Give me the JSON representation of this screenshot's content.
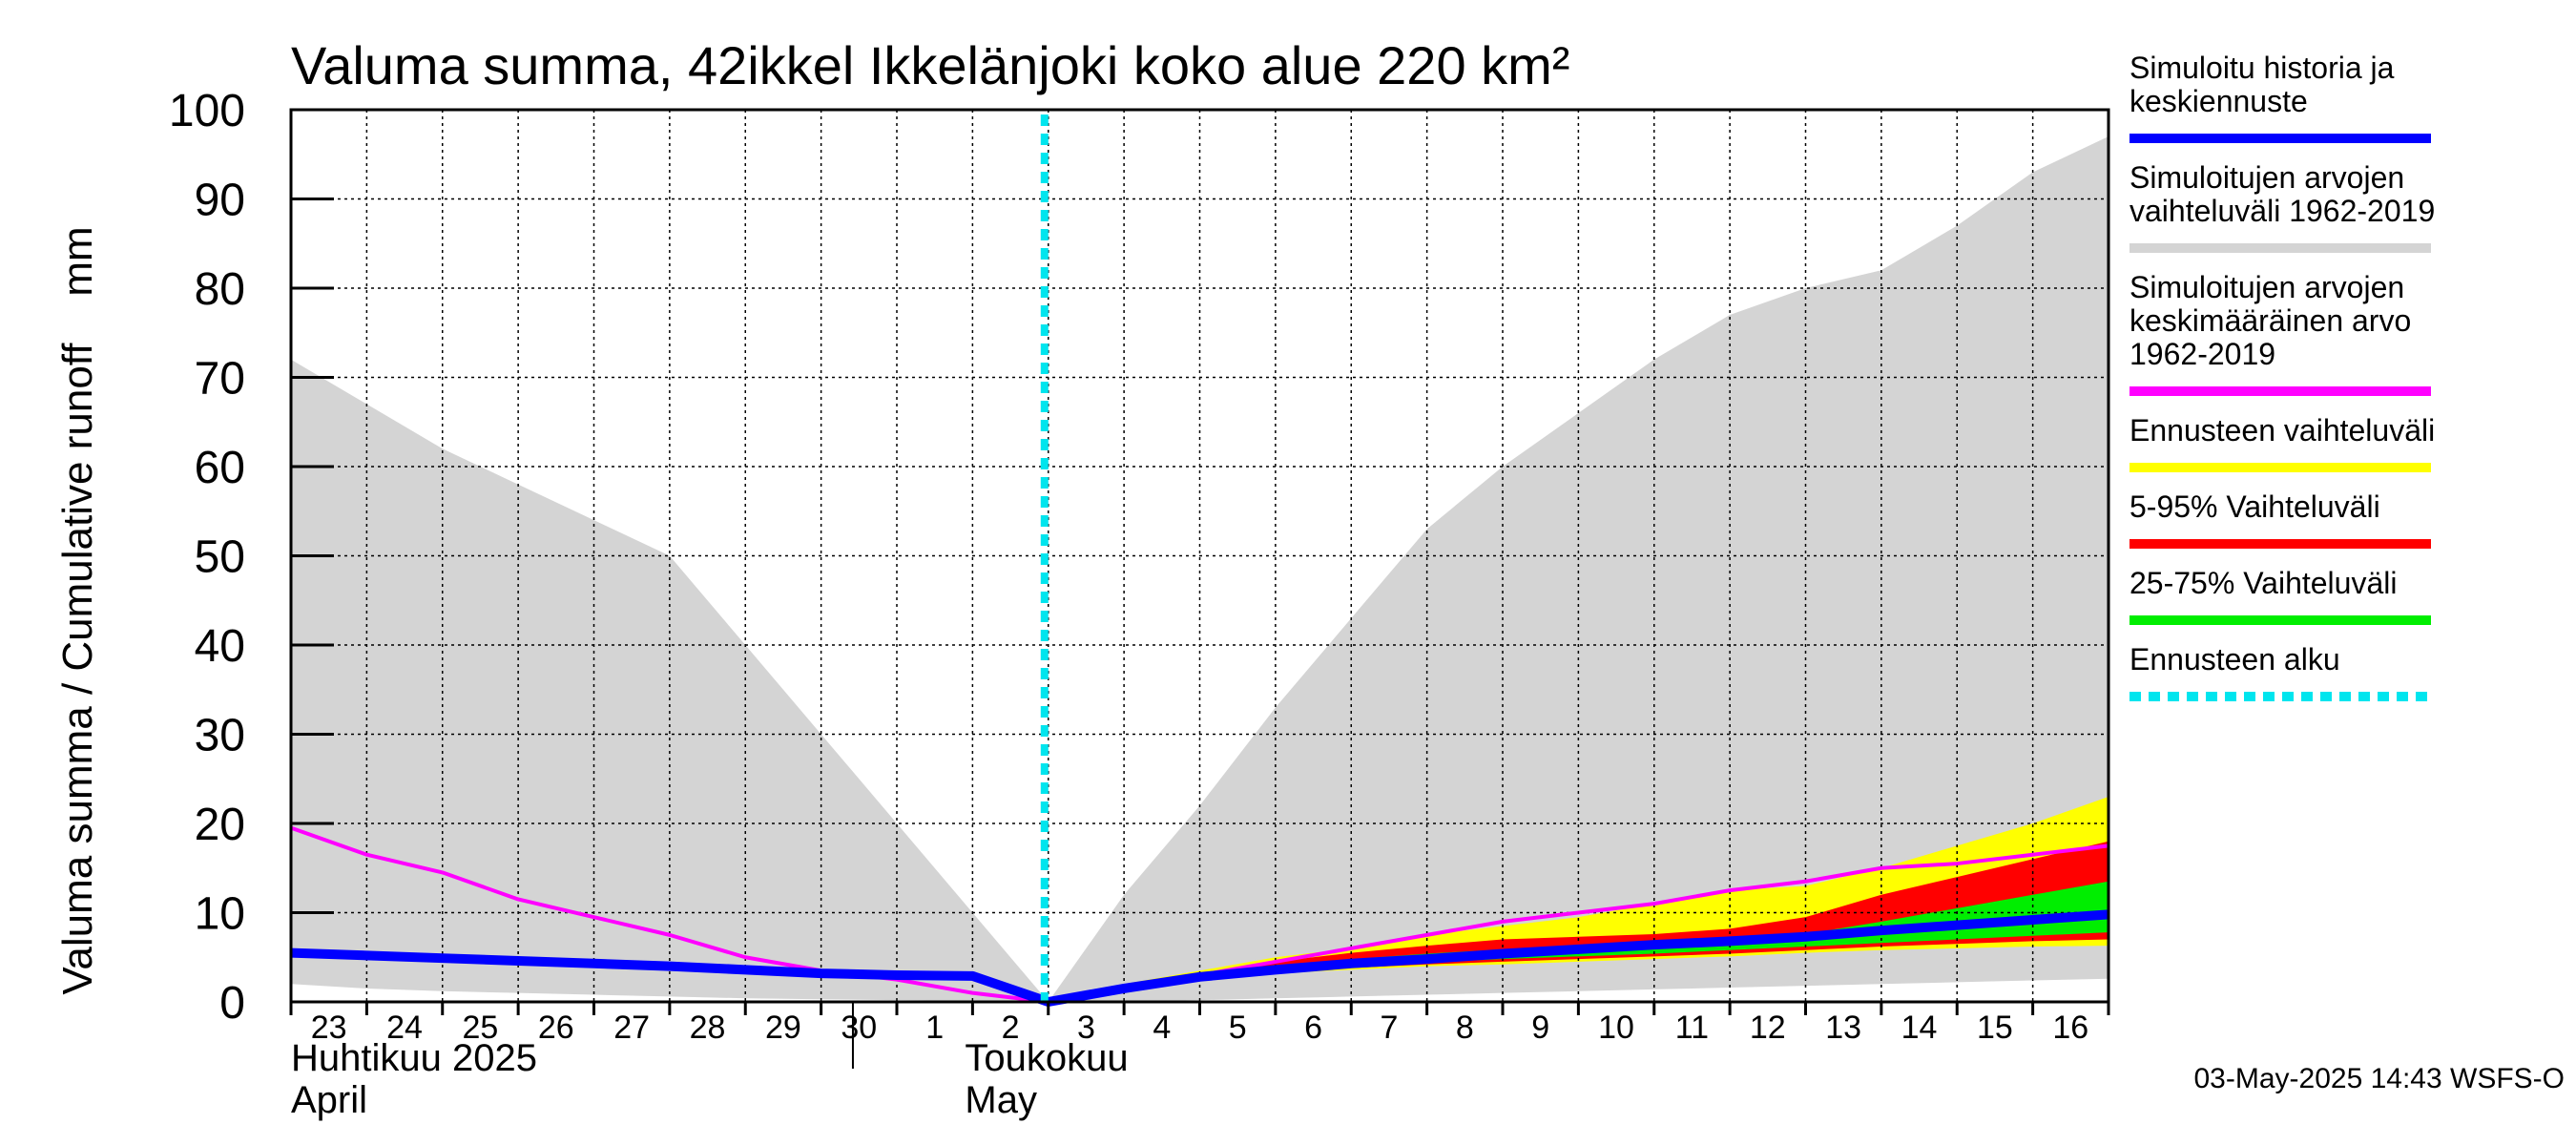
{
  "chart_data": {
    "type": "area",
    "title": "Valuma summa, 42ikkel Ikkelänjoki koko alue 220 km²",
    "ylabel": "Valuma summa / Cumulative runoff    mm",
    "xlabel": "",
    "ylim": [
      0,
      100
    ],
    "y_ticks": [
      "0",
      "10",
      "20",
      "30",
      "40",
      "50",
      "60",
      "70",
      "80",
      "90",
      "100"
    ],
    "grid": true,
    "x_tick_labels": [
      "23",
      "24",
      "25",
      "26",
      "27",
      "28",
      "29",
      "30",
      "1",
      "2",
      "3",
      "4",
      "5",
      "6",
      "7",
      "8",
      "9",
      "10",
      "11",
      "12",
      "13",
      "14",
      "15",
      "16"
    ],
    "month_labels": [
      {
        "line1": "Huhtikuu  2025",
        "line2": "April"
      },
      {
        "line1": "Toukokuu",
        "line2": "May"
      }
    ],
    "x_days": [
      "2025-04-23",
      "2025-04-24",
      "2025-04-25",
      "2025-04-26",
      "2025-04-27",
      "2025-04-28",
      "2025-04-29",
      "2025-04-30",
      "2025-05-01",
      "2025-05-02",
      "2025-05-03",
      "2025-05-04",
      "2025-05-05",
      "2025-05-06",
      "2025-05-07",
      "2025-05-08",
      "2025-05-09",
      "2025-05-10",
      "2025-05-11",
      "2025-05-12",
      "2025-05-13",
      "2025-05-14",
      "2025-05-15",
      "2025-05-16",
      "2025-05-17"
    ],
    "forecast_start": "2025-05-03",
    "series": [
      {
        "name": "Simuloitujen arvojen vaihteluväli 1962-2019",
        "kind": "band",
        "color": "#d4d4d4",
        "upper": [
          72,
          67,
          62,
          58,
          54,
          50,
          40,
          30,
          20,
          10,
          0,
          12,
          22,
          33,
          43,
          53,
          60,
          66,
          72,
          77,
          80,
          82,
          87,
          93,
          97
        ],
        "lower": [
          2,
          1.5,
          1.2,
          1,
          0.8,
          0.6,
          0.4,
          0.3,
          0.2,
          0.1,
          0,
          0,
          0.2,
          0.4,
          0.6,
          0.8,
          1,
          1.2,
          1.4,
          1.6,
          1.8,
          2,
          2.2,
          2.4,
          2.6
        ]
      },
      {
        "name": "Ennusteen vaihteluväli",
        "kind": "band",
        "color": "#ffff00",
        "x_start": "2025-05-03",
        "upper": [
          0,
          2,
          3.5,
          5,
          6,
          7.5,
          8.5,
          9.5,
          11,
          12.5,
          13,
          15,
          17.5,
          20,
          23
        ],
        "lower": [
          0,
          1.5,
          2.5,
          3.2,
          3.6,
          4,
          4.2,
          4.5,
          4.8,
          5.1,
          5.5,
          5.8,
          6,
          6.2,
          6.3
        ]
      },
      {
        "name": "5-95% Vaihteluväli",
        "kind": "band",
        "color": "#ff0000",
        "x_start": "2025-05-03",
        "upper": [
          0,
          1.8,
          3.2,
          4.5,
          5.5,
          6.3,
          7,
          7.3,
          7.6,
          8.2,
          9.5,
          12,
          14,
          16,
          18
        ],
        "lower": [
          0,
          1.6,
          2.7,
          3.4,
          3.8,
          4.2,
          4.5,
          4.8,
          5.1,
          5.4,
          5.8,
          6.2,
          6.5,
          6.8,
          7
        ]
      },
      {
        "name": "25-75% Vaihteluväli",
        "kind": "band",
        "color": "#00ee00",
        "x_start": "2025-05-03",
        "upper": [
          0,
          1.7,
          3,
          4.1,
          4.8,
          5.4,
          5.9,
          6.3,
          6.6,
          7,
          7.6,
          9,
          10.5,
          12,
          13.5
        ],
        "lower": [
          0,
          1.6,
          2.8,
          3.6,
          4,
          4.4,
          4.8,
          5.1,
          5.4,
          5.8,
          6.2,
          6.6,
          7,
          7.4,
          7.8
        ]
      },
      {
        "name": "Simuloitujen arvojen keskimääräinen arvo 1962-2019",
        "kind": "line",
        "color": "#ff00ff",
        "values": [
          19.5,
          16.5,
          14.5,
          11.5,
          9.5,
          7.5,
          5,
          3.5,
          2.5,
          1,
          0,
          1.5,
          3,
          4.5,
          6,
          7.5,
          9,
          10,
          11,
          12.5,
          13.5,
          15,
          15.5,
          16.5,
          17.5
        ]
      },
      {
        "name": "Simuloitu historia ja keskiennuste",
        "kind": "line",
        "color": "#0000ff",
        "values": [
          5.5,
          5.2,
          4.9,
          4.6,
          4.3,
          4,
          3.6,
          3.2,
          3,
          2.9,
          0,
          1.5,
          2.8,
          3.6,
          4.3,
          4.8,
          5.4,
          5.9,
          6.4,
          6.8,
          7.3,
          8,
          8.6,
          9.2,
          9.8
        ]
      }
    ]
  },
  "legend": [
    {
      "lines": [
        "Simuloitu historia ja",
        "keskiennuste"
      ],
      "color": "#0000ff",
      "style": "solid"
    },
    {
      "lines": [
        "Simuloitujen arvojen",
        "vaihteluväli 1962-2019"
      ],
      "color": "#d4d4d4",
      "style": "solid"
    },
    {
      "lines": [
        "Simuloitujen arvojen",
        "keskimääräinen arvo",
        "   1962-2019"
      ],
      "color": "#ff00ff",
      "style": "solid"
    },
    {
      "lines": [
        "Ennusteen vaihteluväli"
      ],
      "color": "#ffff00",
      "style": "solid"
    },
    {
      "lines": [
        "5-95% Vaihteluväli"
      ],
      "color": "#ff0000",
      "style": "solid"
    },
    {
      "lines": [
        "25-75% Vaihteluväli"
      ],
      "color": "#00ee00",
      "style": "solid"
    },
    {
      "lines": [
        "Ennusteen alku"
      ],
      "color": "#00e5ee",
      "style": "dotted"
    }
  ],
  "footer": "03-May-2025 14:43 WSFS-O"
}
